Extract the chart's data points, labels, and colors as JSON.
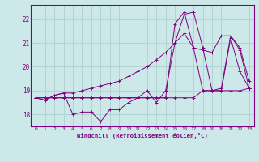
{
  "title": "",
  "xlabel": "Windchill (Refroidissement éolien,°C)",
  "ylabel": "",
  "background_color": "#cce8e8",
  "grid_color": "#aacccc",
  "line_color": "#800080",
  "xlim": [
    -0.5,
    23.5
  ],
  "ylim": [
    17.5,
    22.6
  ],
  "yticks": [
    18,
    19,
    20,
    21,
    22
  ],
  "xticks": [
    0,
    1,
    2,
    3,
    4,
    5,
    6,
    7,
    8,
    9,
    10,
    11,
    12,
    13,
    14,
    15,
    16,
    17,
    18,
    19,
    20,
    21,
    22,
    23
  ],
  "series": [
    [
      18.7,
      18.6,
      18.8,
      18.9,
      18.0,
      18.1,
      18.1,
      17.7,
      18.2,
      18.2,
      18.5,
      18.7,
      19.0,
      18.5,
      19.0,
      21.0,
      22.2,
      22.3,
      20.8,
      19.0,
      19.1,
      21.3,
      20.8,
      19.4
    ],
    [
      18.7,
      18.7,
      18.7,
      18.7,
      18.7,
      18.7,
      18.7,
      18.7,
      18.7,
      18.7,
      18.7,
      18.7,
      18.7,
      18.7,
      18.7,
      18.7,
      18.7,
      18.7,
      19.0,
      19.0,
      19.0,
      19.0,
      19.0,
      19.1
    ],
    [
      18.7,
      18.6,
      18.8,
      18.9,
      18.9,
      19.0,
      19.1,
      19.2,
      19.3,
      19.4,
      19.6,
      19.8,
      20.0,
      20.3,
      20.6,
      21.0,
      21.4,
      20.8,
      20.7,
      20.6,
      21.3,
      21.3,
      20.7,
      19.1
    ],
    [
      18.7,
      18.7,
      18.7,
      18.7,
      18.7,
      18.7,
      18.7,
      18.7,
      18.7,
      18.7,
      18.7,
      18.7,
      18.7,
      18.7,
      18.7,
      21.8,
      22.3,
      20.8,
      19.0,
      19.0,
      19.0,
      21.2,
      19.8,
      19.1
    ]
  ]
}
